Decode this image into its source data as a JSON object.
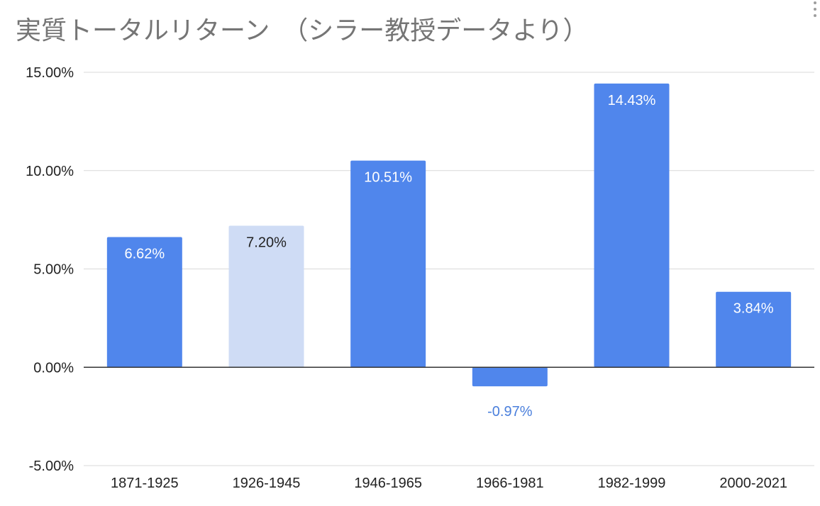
{
  "chart_data": {
    "type": "bar",
    "title": "実質トータルリターン　（シラー教授データより）",
    "xlabel": "",
    "ylabel": "",
    "categories": [
      "1871-1925",
      "1926-1945",
      "1946-1965",
      "1966-1981",
      "1982-1999",
      "2000-2021"
    ],
    "values": [
      6.62,
      7.2,
      10.51,
      -0.97,
      14.43,
      3.84
    ],
    "value_labels": [
      "6.62%",
      "7.20%",
      "10.51%",
      "-0.97%",
      "14.43%",
      "3.84%"
    ],
    "highlighted_index": 1,
    "ylim": [
      -5,
      15
    ],
    "yticks": [
      15,
      10,
      5,
      0,
      -5
    ],
    "ytick_labels": [
      "15.00%",
      "10.00%",
      "5.00%",
      "0.00%",
      "-5.00%"
    ],
    "grid": true,
    "legend": "none",
    "colors": {
      "bar": "#5086ec",
      "highlight": "#cfdcf5",
      "grid": "#d9d9d9",
      "zero_line": "#333333",
      "label_on_bar": "#ffffff",
      "label_highlight": "#222222",
      "label_negative": "#4a7fdc",
      "title": "#757575",
      "tick": "#222222"
    }
  },
  "ui": {
    "menu_icon": "vertical-dots-icon"
  }
}
